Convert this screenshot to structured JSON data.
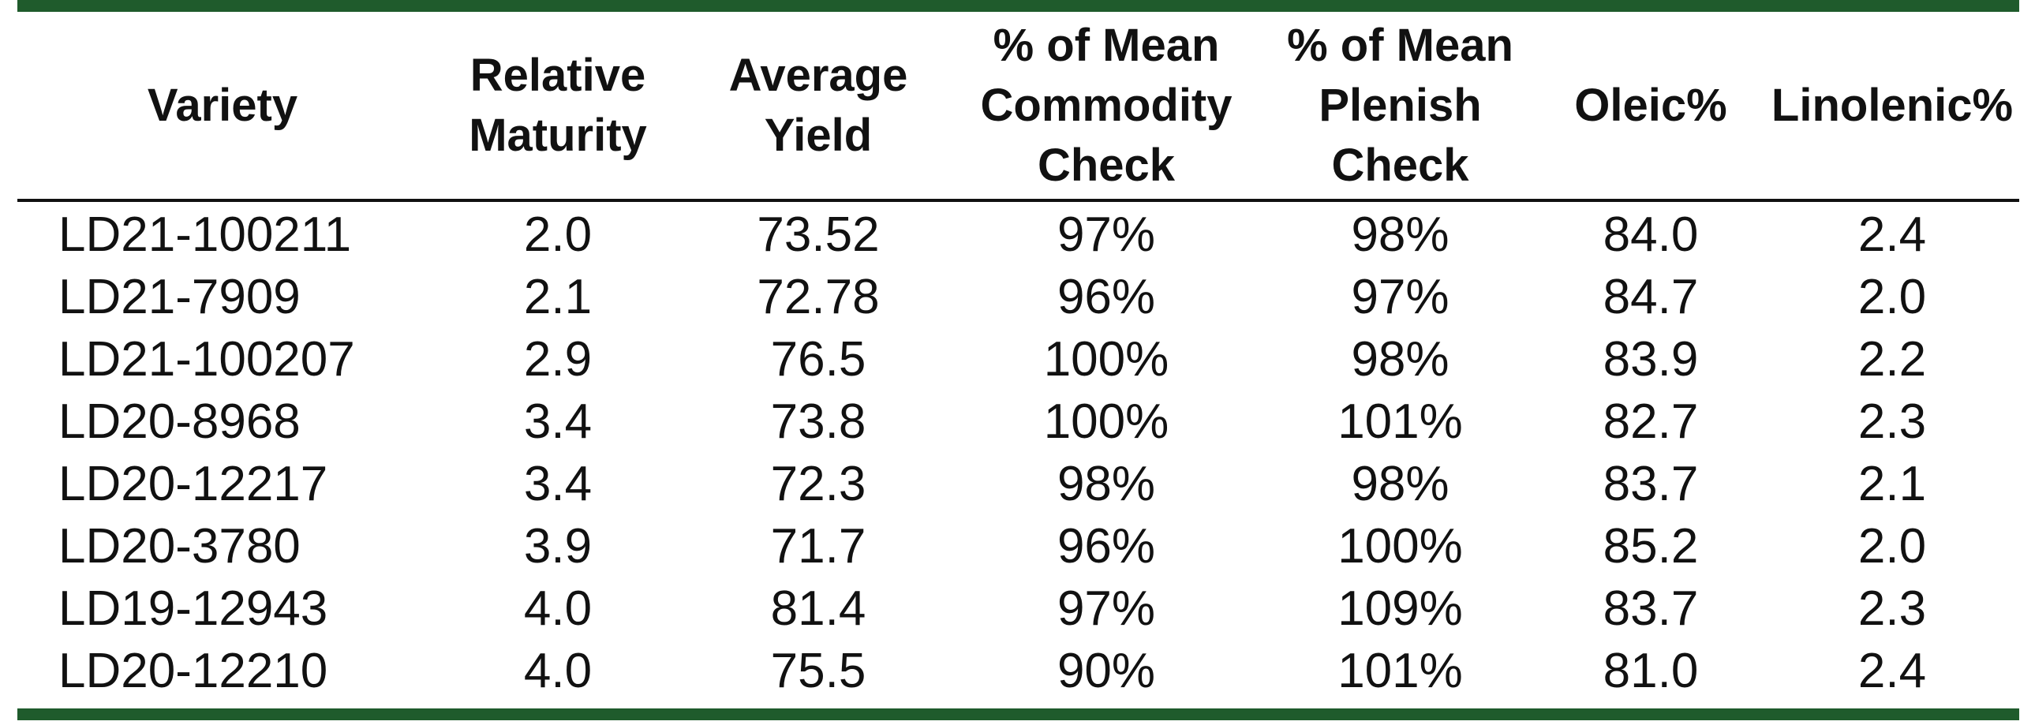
{
  "colors": {
    "rule_green": "#1f5b2c",
    "text": "#111111"
  },
  "table": {
    "headers": [
      [
        "Variety"
      ],
      [
        "Relative",
        "Maturity"
      ],
      [
        "Average",
        "Yield"
      ],
      [
        "% of Mean",
        "Commodity",
        "Check"
      ],
      [
        "% of Mean",
        "Plenish",
        "Check"
      ],
      [
        "Oleic%"
      ],
      [
        "Linolenic%"
      ]
    ],
    "rows": [
      [
        "LD21-100211",
        "2.0",
        "73.52",
        "97%",
        "98%",
        "84.0",
        "2.4"
      ],
      [
        "LD21-7909",
        "2.1",
        "72.78",
        "96%",
        "97%",
        "84.7",
        "2.0"
      ],
      [
        "LD21-100207",
        "2.9",
        "76.5",
        "100%",
        "98%",
        "83.9",
        "2.2"
      ],
      [
        "LD20-8968",
        "3.4",
        "73.8",
        "100%",
        "101%",
        "82.7",
        "2.3"
      ],
      [
        "LD20-12217",
        "3.4",
        "72.3",
        "98%",
        "98%",
        "83.7",
        "2.1"
      ],
      [
        "LD20-3780",
        "3.9",
        "71.7",
        "96%",
        "100%",
        "85.2",
        "2.0"
      ],
      [
        "LD19-12943",
        "4.0",
        "81.4",
        "97%",
        "109%",
        "83.7",
        "2.3"
      ],
      [
        "LD20-12210",
        "4.0",
        "75.5",
        "90%",
        "101%",
        "81.0",
        "2.4"
      ]
    ]
  }
}
